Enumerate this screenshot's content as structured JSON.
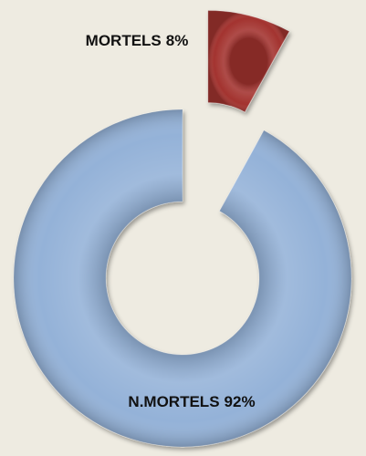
{
  "chart_data": {
    "type": "donut",
    "categories": [
      "MORTELS",
      "N.MORTELS"
    ],
    "values": [
      8,
      92
    ],
    "value_labels": [
      "8%",
      "92%"
    ],
    "colors": [
      "#a3332f",
      "#94b2d8"
    ]
  }
}
